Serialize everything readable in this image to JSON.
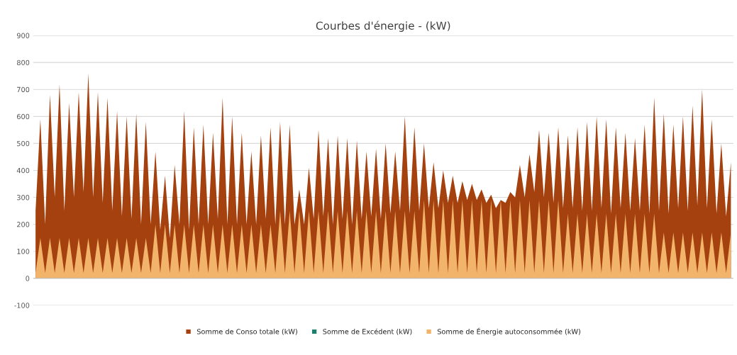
{
  "chart_data": {
    "type": "area",
    "title": "Courbes d'énergie - (kW)",
    "categories": [
      null,
      null,
      null,
      null,
      null,
      null,
      null,
      null,
      null,
      null,
      null,
      null,
      null,
      null,
      null,
      null,
      null,
      null,
      null,
      null,
      null,
      null,
      null,
      null,
      null,
      null,
      null,
      null,
      null,
      null,
      null,
      null,
      null,
      null,
      null,
      null,
      null,
      null,
      null,
      null,
      null,
      null,
      null,
      null,
      null,
      null,
      null,
      null,
      null,
      null,
      null,
      null,
      null,
      null,
      null,
      null,
      null,
      null,
      null,
      null,
      null,
      null,
      null,
      null,
      null,
      null,
      null,
      null,
      null,
      null,
      null,
      null,
      null,
      null,
      null,
      null,
      null,
      null,
      null,
      null,
      null,
      null,
      null,
      null,
      null,
      null,
      null,
      null,
      null,
      null,
      null,
      null,
      null,
      null,
      null,
      null,
      null,
      null,
      null,
      null,
      null,
      null,
      null,
      null,
      null,
      null,
      null,
      null,
      null,
      null,
      null,
      null,
      null,
      null,
      null,
      null,
      null,
      null,
      null,
      null,
      null,
      null,
      null,
      null,
      null,
      null,
      null,
      null,
      null,
      null,
      null,
      null,
      null,
      null,
      null,
      null,
      null,
      null,
      null,
      null,
      null,
      null,
      null,
      null,
      null,
      null
    ],
    "ylim": [
      -100,
      900
    ],
    "yticks": [
      -100,
      0,
      100,
      200,
      300,
      400,
      500,
      600,
      700,
      800,
      900
    ],
    "grid": "y",
    "legend": "bottom",
    "tick_labels": "y",
    "series": [
      {
        "name": "Somme de Conso totale (kW)",
        "color": "#a5410f",
        "values": [
          250,
          590,
          200,
          680,
          300,
          720,
          250,
          650,
          300,
          690,
          320,
          760,
          300,
          690,
          280,
          670,
          250,
          620,
          230,
          600,
          220,
          610,
          200,
          580,
          200,
          470,
          180,
          380,
          150,
          420,
          200,
          620,
          180,
          560,
          200,
          570,
          200,
          540,
          220,
          670,
          200,
          600,
          200,
          540,
          200,
          470,
          200,
          530,
          220,
          560,
          200,
          580,
          200,
          570,
          200,
          330,
          200,
          410,
          220,
          550,
          230,
          520,
          200,
          530,
          220,
          520,
          200,
          510,
          220,
          470,
          230,
          480,
          220,
          500,
          240,
          470,
          250,
          600,
          240,
          560,
          250,
          500,
          260,
          430,
          260,
          400,
          280,
          380,
          280,
          360,
          290,
          350,
          290,
          330,
          280,
          310,
          260,
          290,
          280,
          320,
          300,
          420,
          300,
          460,
          320,
          550,
          300,
          540,
          280,
          560,
          260,
          530,
          260,
          560,
          250,
          580,
          250,
          600,
          260,
          590,
          240,
          560,
          260,
          540,
          250,
          520,
          250,
          570,
          240,
          670,
          250,
          610,
          240,
          570,
          260,
          600,
          250,
          640,
          270,
          700,
          260,
          590,
          240,
          500,
          230,
          430
        ]
      },
      {
        "name": "Somme de Excédent (kW)",
        "color": "#1f7f6f",
        "values": [
          null,
          null,
          null,
          null,
          null,
          null,
          null,
          null,
          null,
          null,
          null,
          null,
          null,
          null,
          null,
          null,
          null,
          null,
          null,
          null,
          null,
          null,
          null,
          null,
          null,
          null,
          null,
          null,
          null,
          null,
          null,
          null,
          null,
          null,
          null,
          null,
          null,
          null,
          null,
          null,
          null,
          null,
          null,
          null,
          null,
          null,
          null,
          null,
          null,
          null,
          null,
          null,
          null,
          null,
          null,
          null,
          null,
          null,
          null,
          null,
          null,
          null,
          null,
          null,
          null,
          null,
          null,
          null,
          null,
          null,
          null,
          null,
          null,
          null,
          null,
          null,
          null,
          null,
          null,
          null,
          null,
          null,
          null,
          null,
          null,
          null,
          null,
          null,
          null,
          null,
          null,
          null,
          null,
          null,
          null,
          null,
          null,
          null,
          null,
          null,
          null,
          null,
          null,
          null,
          null,
          null,
          null,
          null,
          null,
          null,
          null,
          null,
          null,
          null,
          null,
          null,
          null,
          null,
          null,
          null,
          null,
          null,
          null,
          null,
          null,
          null,
          null,
          null,
          null,
          null,
          null,
          null,
          null,
          null,
          null,
          null,
          null,
          null,
          null,
          null,
          null,
          null,
          null,
          null,
          null,
          null
        ]
      },
      {
        "name": "Somme de Énergie autoconsommée (kW)",
        "color": "#f2b36a",
        "values": [
          20,
          150,
          20,
          150,
          20,
          150,
          20,
          150,
          20,
          150,
          20,
          150,
          20,
          150,
          20,
          150,
          20,
          150,
          20,
          150,
          20,
          150,
          20,
          150,
          20,
          200,
          20,
          200,
          20,
          200,
          20,
          200,
          20,
          200,
          20,
          200,
          20,
          200,
          20,
          200,
          20,
          200,
          20,
          200,
          20,
          200,
          20,
          200,
          20,
          200,
          20,
          250,
          20,
          250,
          20,
          250,
          20,
          250,
          20,
          250,
          20,
          250,
          20,
          250,
          20,
          250,
          20,
          250,
          20,
          250,
          20,
          250,
          20,
          250,
          20,
          250,
          20,
          250,
          20,
          250,
          20,
          290,
          20,
          290,
          20,
          290,
          20,
          290,
          20,
          290,
          20,
          290,
          20,
          290,
          20,
          290,
          20,
          290,
          20,
          290,
          20,
          290,
          20,
          290,
          20,
          290,
          20,
          290,
          20,
          290,
          20,
          240,
          20,
          240,
          20,
          240,
          20,
          240,
          20,
          240,
          20,
          240,
          20,
          240,
          20,
          240,
          20,
          240,
          20,
          240,
          20,
          170,
          20,
          170,
          20,
          170,
          20,
          170,
          20,
          170,
          20,
          170,
          20,
          170,
          20,
          170
        ]
      }
    ]
  }
}
